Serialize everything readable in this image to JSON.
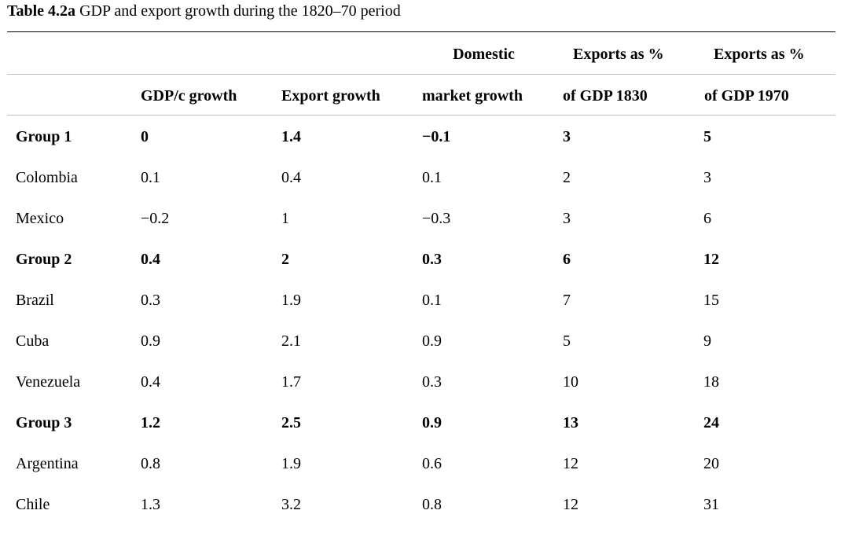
{
  "caption": {
    "label": "Table 4.2a",
    "text": " GDP and export growth during the 1820–70 period"
  },
  "header": {
    "top": {
      "col3": "Domestic",
      "col4": "Exports as %",
      "col5": "Exports as %"
    },
    "bottom": {
      "col1": "GDP/c growth",
      "col2": "Export growth",
      "col3": "market growth",
      "col4": "of GDP 1830",
      "col5": "of GDP 1970"
    }
  },
  "rows": [
    {
      "name": "Group 1",
      "gdp_growth": "0",
      "export_growth": "1.4",
      "domestic_growth": "−0.1",
      "exports_1830": "3",
      "exports_1970": "5",
      "group": true
    },
    {
      "name": "Colombia",
      "gdp_growth": "0.1",
      "export_growth": "0.4",
      "domestic_growth": "0.1",
      "exports_1830": "2",
      "exports_1970": "3",
      "group": false
    },
    {
      "name": "Mexico",
      "gdp_growth": "−0.2",
      "export_growth": "1",
      "domestic_growth": "−0.3",
      "exports_1830": "3",
      "exports_1970": "6",
      "group": false
    },
    {
      "name": "Group 2",
      "gdp_growth": "0.4",
      "export_growth": "2",
      "domestic_growth": "0.3",
      "exports_1830": "6",
      "exports_1970": "12",
      "group": true
    },
    {
      "name": "Brazil",
      "gdp_growth": "0.3",
      "export_growth": "1.9",
      "domestic_growth": "0.1",
      "exports_1830": "7",
      "exports_1970": "15",
      "group": false
    },
    {
      "name": "Cuba",
      "gdp_growth": "0.9",
      "export_growth": "2.1",
      "domestic_growth": "0.9",
      "exports_1830": "5",
      "exports_1970": "9",
      "group": false
    },
    {
      "name": "Venezuela",
      "gdp_growth": "0.4",
      "export_growth": "1.7",
      "domestic_growth": "0.3",
      "exports_1830": "10",
      "exports_1970": "18",
      "group": false
    },
    {
      "name": "Group 3",
      "gdp_growth": "1.2",
      "export_growth": "2.5",
      "domestic_growth": "0.9",
      "exports_1830": "13",
      "exports_1970": "24",
      "group": true
    },
    {
      "name": "Argentina",
      "gdp_growth": "0.8",
      "export_growth": "1.9",
      "domestic_growth": "0.6",
      "exports_1830": "12",
      "exports_1970": "20",
      "group": false
    },
    {
      "name": "Chile",
      "gdp_growth": "1.3",
      "export_growth": "3.2",
      "domestic_growth": "0.8",
      "exports_1830": "12",
      "exports_1970": "31",
      "group": false
    }
  ]
}
